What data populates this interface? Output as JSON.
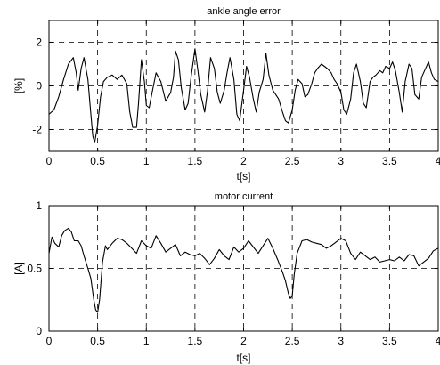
{
  "chart_data": [
    {
      "type": "line",
      "title": "ankle angle error",
      "xlabel": "t[s]",
      "ylabel": "[%]",
      "xlim": [
        0,
        4
      ],
      "ylim": [
        -3,
        3
      ],
      "xticks": [
        "0",
        "0.5",
        "1",
        "1.5",
        "2",
        "2.5",
        "3",
        "3.5",
        "4"
      ],
      "yticks": [
        "-2",
        "0",
        "2"
      ],
      "ytick_values": [
        -2,
        0,
        2
      ],
      "grid": true,
      "series": [
        {
          "x": [
            0.0,
            0.05,
            0.1,
            0.15,
            0.2,
            0.25,
            0.28,
            0.3,
            0.33,
            0.36,
            0.4,
            0.43,
            0.45,
            0.47,
            0.5,
            0.53,
            0.56,
            0.6,
            0.65,
            0.7,
            0.75,
            0.8,
            0.83,
            0.86,
            0.9,
            0.92,
            0.95,
            0.98,
            1.0,
            1.03,
            1.06,
            1.1,
            1.15,
            1.2,
            1.25,
            1.28,
            1.3,
            1.33,
            1.36,
            1.4,
            1.43,
            1.46,
            1.5,
            1.53,
            1.56,
            1.6,
            1.63,
            1.66,
            1.7,
            1.73,
            1.76,
            1.8,
            1.83,
            1.86,
            1.9,
            1.93,
            1.96,
            2.0,
            2.03,
            2.06,
            2.1,
            2.13,
            2.16,
            2.2,
            2.23,
            2.26,
            2.3,
            2.33,
            2.36,
            2.4,
            2.43,
            2.46,
            2.5,
            2.53,
            2.56,
            2.6,
            2.63,
            2.66,
            2.7,
            2.73,
            2.76,
            2.8,
            2.83,
            2.86,
            2.9,
            2.93,
            2.96,
            3.0,
            3.03,
            3.06,
            3.1,
            3.13,
            3.16,
            3.2,
            3.23,
            3.26,
            3.3,
            3.33,
            3.36,
            3.4,
            3.43,
            3.46,
            3.5,
            3.53,
            3.56,
            3.6,
            3.63,
            3.66,
            3.7,
            3.73,
            3.76,
            3.8,
            3.83,
            3.86,
            3.9,
            3.93,
            3.96,
            4.0
          ],
          "y": [
            -1.3,
            -1.1,
            -0.5,
            0.3,
            1.0,
            1.3,
            0.6,
            -0.2,
            0.8,
            1.3,
            0.3,
            -1.3,
            -2.3,
            -2.6,
            -1.8,
            -0.5,
            0.2,
            0.4,
            0.5,
            0.3,
            0.5,
            0.1,
            -1.2,
            -1.9,
            -1.9,
            -0.8,
            1.2,
            0.2,
            -0.9,
            -1.0,
            -0.3,
            0.6,
            0.2,
            -0.7,
            -0.3,
            0.4,
            1.6,
            1.2,
            -0.1,
            -1.1,
            -0.8,
            0.4,
            1.7,
            0.7,
            -0.4,
            -1.2,
            -0.2,
            1.3,
            0.8,
            -0.3,
            -0.8,
            -0.2,
            0.6,
            1.3,
            0.3,
            -1.3,
            -1.6,
            -0.2,
            0.9,
            0.4,
            -0.6,
            -1.2,
            -0.3,
            0.3,
            1.5,
            0.5,
            -0.2,
            -0.4,
            -0.6,
            -1.2,
            -1.6,
            -1.7,
            -1.1,
            -0.2,
            0.3,
            0.1,
            -0.5,
            -0.4,
            0.1,
            0.6,
            0.8,
            1.0,
            0.9,
            0.8,
            0.6,
            0.3,
            0.1,
            -0.3,
            -1.1,
            -1.3,
            -0.6,
            0.6,
            1.0,
            0.2,
            -0.8,
            -1.0,
            0.2,
            0.4,
            0.5,
            0.7,
            0.6,
            0.9,
            0.8,
            1.1,
            0.7,
            -0.3,
            -1.2,
            0.2,
            1.0,
            0.8,
            -0.4,
            -0.6,
            0.4,
            0.7,
            1.1,
            0.6,
            0.3,
            0.2
          ]
        }
      ]
    },
    {
      "type": "line",
      "title": "motor current",
      "xlabel": "t[s]",
      "ylabel": "[A]",
      "xlim": [
        0,
        4
      ],
      "ylim": [
        0,
        1
      ],
      "xticks": [
        "0",
        "0.5",
        "1",
        "1.5",
        "2",
        "2.5",
        "3",
        "3.5",
        "4"
      ],
      "yticks": [
        "0",
        "0.5",
        "1"
      ],
      "ytick_values": [
        0,
        0.5,
        1
      ],
      "grid": true,
      "series": [
        {
          "x": [
            0.0,
            0.03,
            0.06,
            0.1,
            0.13,
            0.16,
            0.2,
            0.23,
            0.26,
            0.3,
            0.33,
            0.36,
            0.4,
            0.43,
            0.46,
            0.48,
            0.5,
            0.52,
            0.55,
            0.58,
            0.6,
            0.65,
            0.7,
            0.75,
            0.8,
            0.85,
            0.9,
            0.95,
            1.0,
            1.05,
            1.1,
            1.15,
            1.2,
            1.25,
            1.3,
            1.35,
            1.4,
            1.45,
            1.5,
            1.55,
            1.6,
            1.65,
            1.7,
            1.75,
            1.8,
            1.85,
            1.9,
            1.95,
            2.0,
            2.05,
            2.1,
            2.15,
            2.2,
            2.25,
            2.3,
            2.35,
            2.4,
            2.43,
            2.46,
            2.48,
            2.5,
            2.52,
            2.55,
            2.6,
            2.65,
            2.7,
            2.75,
            2.8,
            2.85,
            2.9,
            2.95,
            3.0,
            3.05,
            3.1,
            3.15,
            3.2,
            3.25,
            3.3,
            3.35,
            3.4,
            3.45,
            3.5,
            3.55,
            3.6,
            3.65,
            3.7,
            3.75,
            3.8,
            3.85,
            3.9,
            3.95,
            4.0
          ],
          "y": [
            0.62,
            0.75,
            0.7,
            0.67,
            0.76,
            0.8,
            0.82,
            0.79,
            0.72,
            0.72,
            0.68,
            0.6,
            0.5,
            0.42,
            0.25,
            0.17,
            0.15,
            0.25,
            0.55,
            0.68,
            0.65,
            0.7,
            0.74,
            0.73,
            0.7,
            0.66,
            0.62,
            0.72,
            0.68,
            0.66,
            0.76,
            0.7,
            0.63,
            0.66,
            0.69,
            0.6,
            0.63,
            0.61,
            0.6,
            0.62,
            0.58,
            0.53,
            0.58,
            0.65,
            0.6,
            0.57,
            0.67,
            0.63,
            0.66,
            0.72,
            0.67,
            0.62,
            0.68,
            0.74,
            0.66,
            0.57,
            0.47,
            0.4,
            0.3,
            0.26,
            0.28,
            0.45,
            0.62,
            0.72,
            0.73,
            0.71,
            0.7,
            0.69,
            0.66,
            0.68,
            0.71,
            0.74,
            0.72,
            0.62,
            0.57,
            0.63,
            0.6,
            0.57,
            0.59,
            0.55,
            0.56,
            0.57,
            0.56,
            0.59,
            0.56,
            0.61,
            0.6,
            0.52,
            0.55,
            0.58,
            0.64,
            0.66
          ]
        }
      ]
    }
  ]
}
